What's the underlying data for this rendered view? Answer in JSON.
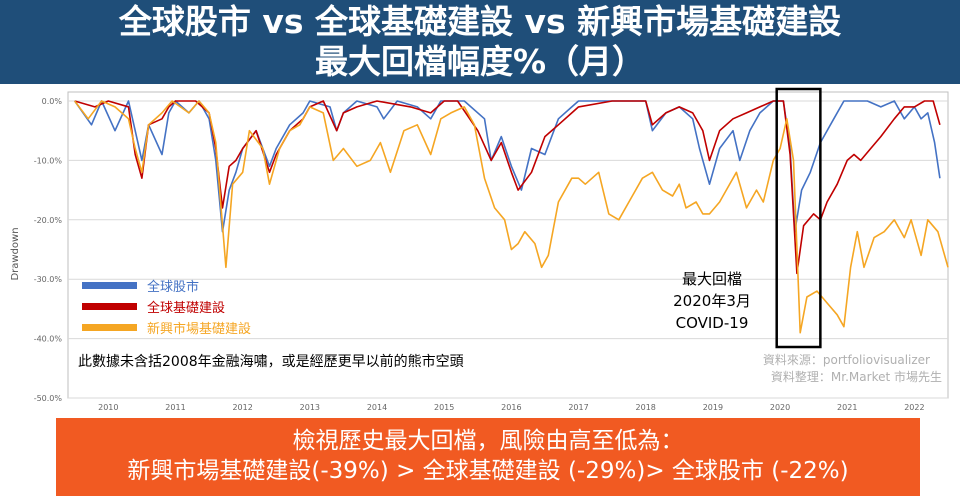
{
  "header": {
    "title_line1": "全球股市 vs 全球基礎建設 vs 新興市場基礎建設",
    "title_line2": "最大回檔幅度%（月）"
  },
  "chart_data": {
    "type": "line",
    "ylabel": "Drawdown",
    "ylim": [
      -50,
      0
    ],
    "yticks": [
      0,
      -10,
      -20,
      -30,
      -40,
      -50
    ],
    "ytick_labels": [
      "0.0%",
      "-10.0%",
      "-20.0%",
      "-30.0%",
      "-40.0%",
      "-50.0%"
    ],
    "xlim": [
      2009.4,
      2022.5
    ],
    "xticks": [
      2010,
      2011,
      2012,
      2013,
      2014,
      2015,
      2016,
      2017,
      2018,
      2019,
      2020,
      2021,
      2022
    ],
    "xtick_labels": [
      "2010",
      "2011",
      "2012",
      "2013",
      "2014",
      "2015",
      "2016",
      "2017",
      "2018",
      "2019",
      "2020",
      "2021",
      "2022"
    ],
    "grid": true,
    "legend_position": "bottom-left",
    "series": [
      {
        "name": "全球股市",
        "color": "#4472c4",
        "points": [
          [
            2009.5,
            0
          ],
          [
            2009.75,
            -4
          ],
          [
            2009.9,
            0
          ],
          [
            2010.1,
            -5
          ],
          [
            2010.3,
            0
          ],
          [
            2010.5,
            -10
          ],
          [
            2010.6,
            -4
          ],
          [
            2010.8,
            -9
          ],
          [
            2010.9,
            -2
          ],
          [
            2011.0,
            0
          ],
          [
            2011.2,
            -2
          ],
          [
            2011.35,
            0
          ],
          [
            2011.5,
            -3
          ],
          [
            2011.6,
            -10
          ],
          [
            2011.7,
            -22
          ],
          [
            2011.8,
            -15
          ],
          [
            2011.9,
            -12
          ],
          [
            2012.0,
            -8
          ],
          [
            2012.2,
            -5
          ],
          [
            2012.4,
            -11
          ],
          [
            2012.5,
            -8
          ],
          [
            2012.7,
            -4
          ],
          [
            2012.9,
            -2
          ],
          [
            2013.0,
            0
          ],
          [
            2013.3,
            -1
          ],
          [
            2013.4,
            -5
          ],
          [
            2013.5,
            -2
          ],
          [
            2013.7,
            0
          ],
          [
            2014.0,
            -1
          ],
          [
            2014.1,
            -3
          ],
          [
            2014.3,
            0
          ],
          [
            2014.6,
            -1
          ],
          [
            2014.8,
            -3
          ],
          [
            2014.95,
            0
          ],
          [
            2015.3,
            0
          ],
          [
            2015.6,
            -3
          ],
          [
            2015.7,
            -10
          ],
          [
            2015.85,
            -6
          ],
          [
            2016.0,
            -11
          ],
          [
            2016.15,
            -15
          ],
          [
            2016.3,
            -8
          ],
          [
            2016.5,
            -9
          ],
          [
            2016.7,
            -3
          ],
          [
            2016.9,
            -1
          ],
          [
            2017.0,
            0
          ],
          [
            2017.5,
            0
          ],
          [
            2018.0,
            0
          ],
          [
            2018.1,
            -5
          ],
          [
            2018.3,
            -2
          ],
          [
            2018.5,
            -1
          ],
          [
            2018.7,
            -3
          ],
          [
            2018.8,
            -8
          ],
          [
            2018.95,
            -14
          ],
          [
            2019.1,
            -8
          ],
          [
            2019.3,
            -5
          ],
          [
            2019.4,
            -10
          ],
          [
            2019.55,
            -5
          ],
          [
            2019.7,
            -2
          ],
          [
            2019.9,
            0
          ],
          [
            2020.05,
            0
          ],
          [
            2020.15,
            -8
          ],
          [
            2020.22,
            -22
          ],
          [
            2020.32,
            -15
          ],
          [
            2020.45,
            -12
          ],
          [
            2020.6,
            -7
          ],
          [
            2020.8,
            -3
          ],
          [
            2020.95,
            0
          ],
          [
            2021.3,
            0
          ],
          [
            2021.5,
            -1
          ],
          [
            2021.7,
            0
          ],
          [
            2021.85,
            -3
          ],
          [
            2022.0,
            -1
          ],
          [
            2022.1,
            -3
          ],
          [
            2022.2,
            -2
          ],
          [
            2022.3,
            -7
          ],
          [
            2022.38,
            -13
          ]
        ]
      },
      {
        "name": "全球基礎建設",
        "color": "#c00000",
        "points": [
          [
            2009.5,
            0
          ],
          [
            2009.8,
            -1
          ],
          [
            2010.0,
            0
          ],
          [
            2010.3,
            -1
          ],
          [
            2010.4,
            -9
          ],
          [
            2010.5,
            -13
          ],
          [
            2010.6,
            -4
          ],
          [
            2010.8,
            -3
          ],
          [
            2010.9,
            -1
          ],
          [
            2011.0,
            0
          ],
          [
            2011.3,
            0
          ],
          [
            2011.5,
            -2
          ],
          [
            2011.6,
            -8
          ],
          [
            2011.7,
            -18
          ],
          [
            2011.8,
            -11
          ],
          [
            2011.9,
            -10
          ],
          [
            2012.0,
            -8
          ],
          [
            2012.2,
            -5
          ],
          [
            2012.4,
            -12
          ],
          [
            2012.5,
            -9
          ],
          [
            2012.7,
            -5
          ],
          [
            2012.9,
            -3
          ],
          [
            2013.0,
            -1
          ],
          [
            2013.2,
            0
          ],
          [
            2013.4,
            -5
          ],
          [
            2013.5,
            -2
          ],
          [
            2013.7,
            -1
          ],
          [
            2014.0,
            0
          ],
          [
            2014.5,
            -1
          ],
          [
            2014.8,
            -2
          ],
          [
            2015.0,
            0
          ],
          [
            2015.2,
            0
          ],
          [
            2015.5,
            -5
          ],
          [
            2015.7,
            -10
          ],
          [
            2015.85,
            -7
          ],
          [
            2016.0,
            -12
          ],
          [
            2016.1,
            -15
          ],
          [
            2016.3,
            -12
          ],
          [
            2016.5,
            -6
          ],
          [
            2016.7,
            -4
          ],
          [
            2016.9,
            -2
          ],
          [
            2017.0,
            -1
          ],
          [
            2017.5,
            0
          ],
          [
            2018.0,
            0
          ],
          [
            2018.1,
            -4
          ],
          [
            2018.3,
            -2
          ],
          [
            2018.5,
            -1
          ],
          [
            2018.7,
            -2
          ],
          [
            2018.85,
            -5
          ],
          [
            2018.95,
            -10
          ],
          [
            2019.1,
            -5
          ],
          [
            2019.3,
            -3
          ],
          [
            2019.5,
            -2
          ],
          [
            2019.7,
            -1
          ],
          [
            2019.9,
            0
          ],
          [
            2020.05,
            0
          ],
          [
            2020.15,
            -9
          ],
          [
            2020.25,
            -29
          ],
          [
            2020.35,
            -21
          ],
          [
            2020.5,
            -19
          ],
          [
            2020.6,
            -20
          ],
          [
            2020.7,
            -17
          ],
          [
            2020.85,
            -14
          ],
          [
            2021.0,
            -10
          ],
          [
            2021.1,
            -9
          ],
          [
            2021.2,
            -10
          ],
          [
            2021.35,
            -8
          ],
          [
            2021.5,
            -6
          ],
          [
            2021.7,
            -3
          ],
          [
            2021.85,
            -1
          ],
          [
            2022.0,
            -1
          ],
          [
            2022.15,
            0
          ],
          [
            2022.28,
            0
          ],
          [
            2022.38,
            -4
          ]
        ]
      },
      {
        "name": "新興市場基礎建設",
        "color": "#f5a623",
        "points": [
          [
            2009.5,
            0
          ],
          [
            2009.7,
            -3
          ],
          [
            2009.9,
            0
          ],
          [
            2010.1,
            -1
          ],
          [
            2010.3,
            -3
          ],
          [
            2010.4,
            -8
          ],
          [
            2010.5,
            -12
          ],
          [
            2010.6,
            -4
          ],
          [
            2010.8,
            -2
          ],
          [
            2010.95,
            0
          ],
          [
            2011.2,
            -2
          ],
          [
            2011.35,
            0
          ],
          [
            2011.5,
            -2
          ],
          [
            2011.6,
            -7
          ],
          [
            2011.75,
            -28
          ],
          [
            2011.85,
            -14
          ],
          [
            2012.0,
            -12
          ],
          [
            2012.1,
            -5
          ],
          [
            2012.3,
            -8
          ],
          [
            2012.4,
            -14
          ],
          [
            2012.55,
            -8
          ],
          [
            2012.7,
            -5
          ],
          [
            2012.85,
            -4
          ],
          [
            2013.0,
            -1
          ],
          [
            2013.2,
            -2
          ],
          [
            2013.35,
            -10
          ],
          [
            2013.5,
            -8
          ],
          [
            2013.7,
            -11
          ],
          [
            2013.9,
            -10
          ],
          [
            2014.05,
            -7
          ],
          [
            2014.2,
            -12
          ],
          [
            2014.4,
            -5
          ],
          [
            2014.6,
            -4
          ],
          [
            2014.8,
            -9
          ],
          [
            2014.95,
            -3
          ],
          [
            2015.1,
            -2
          ],
          [
            2015.3,
            -1
          ],
          [
            2015.45,
            -4
          ],
          [
            2015.6,
            -13
          ],
          [
            2015.75,
            -18
          ],
          [
            2015.9,
            -20
          ],
          [
            2016.0,
            -25
          ],
          [
            2016.1,
            -24
          ],
          [
            2016.2,
            -22
          ],
          [
            2016.35,
            -24
          ],
          [
            2016.45,
            -28
          ],
          [
            2016.55,
            -26
          ],
          [
            2016.7,
            -17
          ],
          [
            2016.9,
            -13
          ],
          [
            2017.0,
            -13
          ],
          [
            2017.1,
            -14
          ],
          [
            2017.3,
            -12
          ],
          [
            2017.45,
            -19
          ],
          [
            2017.6,
            -20
          ],
          [
            2017.8,
            -16
          ],
          [
            2017.95,
            -13
          ],
          [
            2018.1,
            -12
          ],
          [
            2018.25,
            -15
          ],
          [
            2018.4,
            -16
          ],
          [
            2018.5,
            -14
          ],
          [
            2018.6,
            -18
          ],
          [
            2018.75,
            -17
          ],
          [
            2018.85,
            -19
          ],
          [
            2018.95,
            -19
          ],
          [
            2019.1,
            -17
          ],
          [
            2019.2,
            -15
          ],
          [
            2019.35,
            -12
          ],
          [
            2019.5,
            -18
          ],
          [
            2019.65,
            -15
          ],
          [
            2019.75,
            -17
          ],
          [
            2019.9,
            -10
          ],
          [
            2020.0,
            -8
          ],
          [
            2020.1,
            -3
          ],
          [
            2020.2,
            -10
          ],
          [
            2020.3,
            -39
          ],
          [
            2020.4,
            -33
          ],
          [
            2020.55,
            -32
          ],
          [
            2020.7,
            -34
          ],
          [
            2020.85,
            -36
          ],
          [
            2020.95,
            -38
          ],
          [
            2021.05,
            -28
          ],
          [
            2021.15,
            -22
          ],
          [
            2021.25,
            -28
          ],
          [
            2021.4,
            -23
          ],
          [
            2021.55,
            -22
          ],
          [
            2021.7,
            -20
          ],
          [
            2021.85,
            -23
          ],
          [
            2021.95,
            -20
          ],
          [
            2022.1,
            -26
          ],
          [
            2022.2,
            -20
          ],
          [
            2022.35,
            -22
          ],
          [
            2022.5,
            -28
          ]
        ]
      }
    ],
    "annotations": {
      "covid_label": [
        "最大回檔",
        "2020年3月",
        "COVID-19"
      ],
      "covid_range": [
        2019.95,
        2020.6
      ],
      "note": "此數據未含括2008年金融海嘯，或是經歷更早以前的熊市空頭",
      "source_line1": "資料來源：portfoliovisualizer",
      "source_line2": "資料整理：Mr.Market  市場先生"
    }
  },
  "footer": {
    "line1": "檢視歷史最大回檔，風險由高至低為：",
    "line2": "新興市場基礎建設(-39%) > 全球基礎建設 (-29%)> 全球股市 (-22%)"
  }
}
